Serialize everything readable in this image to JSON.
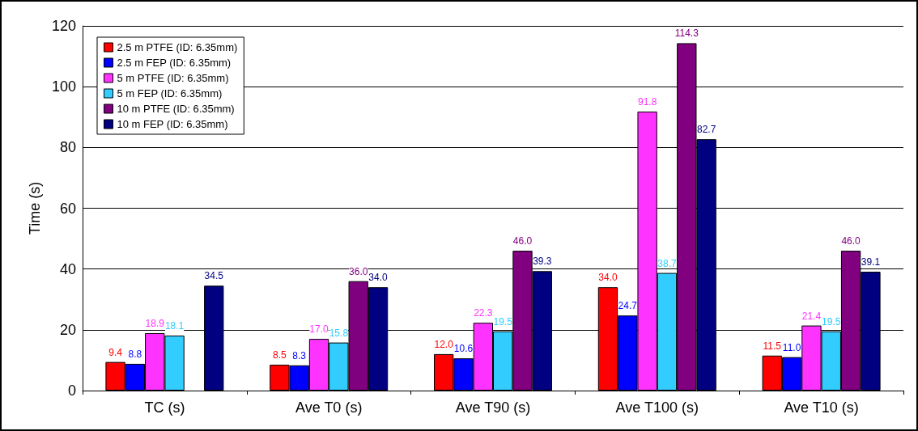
{
  "chart_data": {
    "type": "bar",
    "ylabel": "Time (s)",
    "categories": [
      "TC (s)",
      "Ave T0 (s)",
      "Ave T90 (s)",
      "Ave T100 (s)",
      "Ave T10 (s)"
    ],
    "series": [
      {
        "name": "2.5 m PTFE (ID: 6.35mm)",
        "color": "#ff0000",
        "values": [
          9.4,
          8.5,
          12.0,
          34.0,
          11.5
        ],
        "value_labels": [
          "9.4",
          "8.5",
          "12.0",
          "34.0",
          "11.5"
        ]
      },
      {
        "name": "2.5 m FEP (ID: 6.35mm)",
        "color": "#0000ff",
        "values": [
          8.8,
          8.3,
          10.6,
          24.7,
          11.0
        ],
        "value_labels": [
          "8.8",
          "8.3",
          "10.6",
          "24.7",
          "11.0"
        ]
      },
      {
        "name": "5 m PTFE (ID: 6.35mm)",
        "color": "#ff33ff",
        "values": [
          18.9,
          17.0,
          22.3,
          91.8,
          21.4
        ],
        "value_labels": [
          "18.9",
          "17.0",
          "22.3",
          "91.8",
          "21.4"
        ]
      },
      {
        "name": "5 m FEP (ID: 6.35mm)",
        "color": "#33ccff",
        "values": [
          18.1,
          15.8,
          19.5,
          38.7,
          19.5
        ],
        "value_labels": [
          "18.1",
          "15.8",
          "19.5",
          "38.7",
          "19.5"
        ]
      },
      {
        "name": "10 m PTFE (ID: 6.35mm)",
        "color": "#800080",
        "values": [
          null,
          36.0,
          46.0,
          114.3,
          46.0
        ],
        "value_labels": [
          null,
          "36.0",
          "46.0",
          "114.3",
          "46.0"
        ]
      },
      {
        "name": "10 m FEP (ID: 6.35mm)",
        "color": "#000080",
        "values": [
          34.5,
          34.0,
          39.3,
          82.7,
          39.1
        ],
        "value_labels": [
          "34.5",
          "34.0",
          "39.3",
          "82.7",
          "39.1"
        ]
      }
    ],
    "ylim": [
      0,
      120
    ],
    "yticks": [
      0,
      20,
      40,
      60,
      80,
      100,
      120
    ],
    "grid": "y",
    "legend": "top left"
  }
}
